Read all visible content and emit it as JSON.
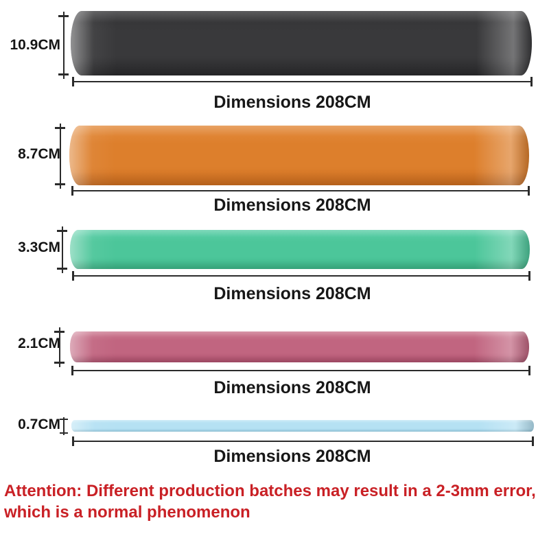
{
  "bands": [
    {
      "name": "black",
      "width_label": "10.9CM",
      "length_label": "Dimensions 208CM",
      "color": "#39393b",
      "shade_top": "#333335",
      "shade_bottom": "#29292b"
    },
    {
      "name": "orange",
      "width_label": "8.7CM",
      "length_label": "Dimensions 208CM",
      "color": "#dd7f2c",
      "shade_top": "#e38c3e",
      "shade_bottom": "#c96b1e"
    },
    {
      "name": "green",
      "width_label": "3.3CM",
      "length_label": "Dimensions 208CM",
      "color": "#4cc69a",
      "shade_top": "#5fd0aa",
      "shade_bottom": "#3cb386"
    },
    {
      "name": "pink",
      "width_label": "2.1CM",
      "length_label": "Dimensions 208CM",
      "color": "#c16580",
      "shade_top": "#cd7b92",
      "shade_bottom": "#ad4f6c"
    },
    {
      "name": "blue",
      "width_label": "0.7CM",
      "length_label": "Dimensions 208CM",
      "color": "#b5e1f3",
      "shade_top": "#c4e8f6",
      "shade_bottom": "#9fd4ea"
    }
  ],
  "attention": {
    "line1": "Attention: Different production batches may result in a 2-3mm error,",
    "line2": "which is a normal phenomenon",
    "color": "#c92025"
  },
  "dimension_line_color": "#2b2b2b"
}
